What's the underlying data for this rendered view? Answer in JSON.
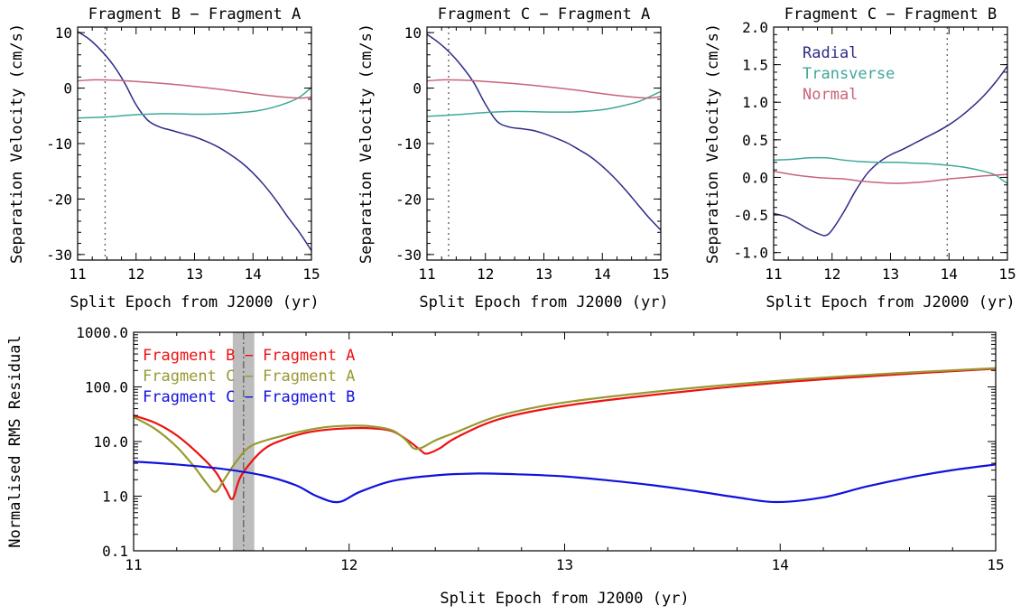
{
  "chart_data": [
    {
      "type": "line",
      "title": "Fragment B − Fragment A",
      "xlabel": "Split Epoch from J2000 (yr)",
      "ylabel": "Separation Velocity (cm/s)",
      "xlim": [
        11,
        15
      ],
      "ylim": [
        -31,
        11
      ],
      "xticks": [
        11,
        12,
        13,
        14,
        15
      ],
      "yticks": [
        10,
        0,
        -10,
        -20,
        -30
      ],
      "vline": 11.47,
      "grid": false,
      "series": [
        {
          "color": "#2d2a86",
          "x": [
            11,
            11.2,
            11.4,
            11.6,
            11.8,
            12.0,
            12.2,
            12.4,
            12.6,
            12.8,
            13.0,
            13.2,
            13.4,
            13.6,
            13.8,
            14.0,
            14.2,
            14.4,
            14.6,
            14.8,
            15.0
          ],
          "y": [
            10.2,
            8.8,
            6.8,
            4.3,
            1.0,
            -3.0,
            -5.8,
            -7.0,
            -7.6,
            -8.2,
            -8.8,
            -9.6,
            -10.6,
            -11.9,
            -13.4,
            -15.3,
            -17.6,
            -20.3,
            -23.3,
            -26.1,
            -29.3
          ]
        },
        {
          "color": "#3fa898",
          "x": [
            11,
            11.5,
            12,
            12.5,
            13,
            13.5,
            14,
            14.3,
            14.6,
            14.8,
            15
          ],
          "y": [
            -5.4,
            -5.2,
            -4.8,
            -4.6,
            -4.7,
            -4.6,
            -4.2,
            -3.6,
            -2.6,
            -1.6,
            0.1
          ]
        },
        {
          "color": "#c8647a",
          "x": [
            11,
            11.3,
            11.7,
            12,
            12.5,
            13,
            13.5,
            14,
            14.5,
            14.8,
            15
          ],
          "y": [
            1.3,
            1.5,
            1.4,
            1.2,
            0.8,
            0.3,
            -0.3,
            -1.0,
            -1.6,
            -1.8,
            -1.6
          ]
        }
      ]
    },
    {
      "type": "line",
      "title": "Fragment C − Fragment A",
      "xlabel": "Split Epoch from J2000 (yr)",
      "ylabel": "Separation Velocity (cm/s)",
      "xlim": [
        11,
        15
      ],
      "ylim": [
        -31,
        11
      ],
      "xticks": [
        11,
        12,
        13,
        14,
        15
      ],
      "yticks": [
        10,
        0,
        -10,
        -20,
        -30
      ],
      "vline": 11.37,
      "grid": false,
      "series": [
        {
          "color": "#2d2a86",
          "x": [
            11,
            11.2,
            11.4,
            11.6,
            11.8,
            12.0,
            12.2,
            12.4,
            12.6,
            12.8,
            13.0,
            13.2,
            13.4,
            13.6,
            13.8,
            14.0,
            14.2,
            14.4,
            14.6,
            14.8,
            15.0
          ],
          "y": [
            9.7,
            8.2,
            6.3,
            3.9,
            1.0,
            -2.9,
            -6.0,
            -7.0,
            -7.3,
            -7.6,
            -8.2,
            -9.0,
            -9.9,
            -11.1,
            -12.4,
            -14.1,
            -16.1,
            -18.4,
            -20.9,
            -23.4,
            -25.6
          ]
        },
        {
          "color": "#3fa898",
          "x": [
            11,
            11.5,
            12,
            12.5,
            13,
            13.5,
            14,
            14.3,
            14.6,
            14.8,
            15
          ],
          "y": [
            -5.1,
            -4.8,
            -4.4,
            -4.2,
            -4.3,
            -4.3,
            -3.9,
            -3.3,
            -2.5,
            -1.6,
            -0.6
          ]
        },
        {
          "color": "#c8647a",
          "x": [
            11,
            11.3,
            11.7,
            12,
            12.5,
            13,
            13.5,
            14,
            14.5,
            14.8,
            15
          ],
          "y": [
            1.3,
            1.5,
            1.4,
            1.2,
            0.8,
            0.3,
            -0.3,
            -1.0,
            -1.6,
            -1.8,
            -1.5
          ]
        }
      ]
    },
    {
      "type": "line",
      "title": "Fragment C − Fragment B",
      "xlabel": "Split Epoch from J2000 (yr)",
      "ylabel": "Separation Velocity (cm/s)",
      "xlim": [
        11,
        15
      ],
      "ylim": [
        -1.1,
        2.0
      ],
      "xticks": [
        11,
        12,
        13,
        14,
        15
      ],
      "yticks": [
        2.0,
        1.5,
        1.0,
        0.5,
        0.0,
        -0.5,
        -1.0
      ],
      "vline": 13.97,
      "grid": false,
      "legend": [
        "Radial",
        "Transverse",
        "Normal"
      ],
      "legend_position": "top-left",
      "series": [
        {
          "name": "Radial",
          "color": "#2d2a86",
          "x": [
            11,
            11.2,
            11.4,
            11.6,
            11.8,
            11.9,
            12.0,
            12.2,
            12.4,
            12.6,
            12.8,
            13.0,
            13.2,
            13.4,
            13.6,
            13.8,
            14.0,
            14.2,
            14.4,
            14.6,
            14.8,
            15.0
          ],
          "y": [
            -0.48,
            -0.52,
            -0.6,
            -0.69,
            -0.76,
            -0.77,
            -0.7,
            -0.46,
            -0.18,
            0.05,
            0.2,
            0.3,
            0.37,
            0.45,
            0.53,
            0.61,
            0.7,
            0.81,
            0.94,
            1.09,
            1.27,
            1.48
          ]
        },
        {
          "name": "Transverse",
          "color": "#3fa898",
          "x": [
            11,
            11.3,
            11.6,
            11.9,
            12.2,
            12.5,
            12.8,
            13.1,
            13.4,
            13.7,
            14.0,
            14.3,
            14.6,
            14.8,
            14.9,
            15.0
          ],
          "y": [
            0.23,
            0.24,
            0.26,
            0.26,
            0.23,
            0.21,
            0.2,
            0.2,
            0.19,
            0.18,
            0.16,
            0.13,
            0.08,
            0.03,
            -0.03,
            -0.08
          ]
        },
        {
          "name": "Normal",
          "color": "#c8647a",
          "x": [
            11,
            11.3,
            11.6,
            11.9,
            12.2,
            12.5,
            12.8,
            13.1,
            13.4,
            13.7,
            14.0,
            14.3,
            14.6,
            14.8,
            15.0
          ],
          "y": [
            0.08,
            0.04,
            0.01,
            -0.01,
            -0.02,
            -0.05,
            -0.07,
            -0.08,
            -0.07,
            -0.05,
            -0.02,
            0.0,
            0.02,
            0.03,
            0.04
          ]
        }
      ]
    },
    {
      "type": "line",
      "xlabel": "Split Epoch from J2000 (yr)",
      "ylabel": "Normalised RMS Residual",
      "xlim": [
        11,
        15
      ],
      "ylim": [
        0.1,
        1000
      ],
      "yscale": "log",
      "xticks": [
        11,
        12,
        13,
        14,
        15
      ],
      "yticks": [
        1000,
        100,
        10,
        1,
        0.1
      ],
      "ytick_labels": [
        "1000.0",
        "100.0",
        "10.0",
        "1.0",
        "0.1"
      ],
      "shaded_band": [
        11.46,
        11.56
      ],
      "vline": 11.51,
      "grid": false,
      "legend": [
        "Fragment B − Fragment A",
        "Fragment C − Fragment A",
        "Fragment C − Fragment B"
      ],
      "legend_position": "top-left",
      "series": [
        {
          "name": "Fragment B − Fragment A",
          "color": "#ee1111",
          "x": [
            11,
            11.1,
            11.2,
            11.3,
            11.38,
            11.43,
            11.46,
            11.5,
            11.6,
            11.7,
            11.8,
            11.9,
            12.0,
            12.1,
            12.2,
            12.28,
            12.33,
            12.36,
            12.42,
            12.5,
            12.7,
            13.0,
            13.5,
            14.0,
            14.5,
            15.0
          ],
          "y": [
            30,
            22,
            13,
            6,
            2.8,
            1.3,
            0.9,
            2.4,
            7,
            11,
            14.5,
            16.5,
            17.5,
            17.5,
            15.5,
            10,
            7,
            6,
            7.5,
            12,
            26,
            45,
            78,
            120,
            165,
            215
          ]
        },
        {
          "name": "Fragment C − Fragment A",
          "color": "#999933",
          "x": [
            11,
            11.1,
            11.2,
            11.28,
            11.34,
            11.38,
            11.42,
            11.48,
            11.55,
            11.7,
            11.8,
            11.9,
            12.0,
            12.1,
            12.2,
            12.26,
            12.3,
            12.34,
            12.4,
            12.5,
            12.7,
            13.0,
            13.5,
            14.0,
            14.5,
            15.0
          ],
          "y": [
            28,
            17,
            8,
            3.5,
            1.7,
            1.2,
            2.0,
            4.5,
            8.5,
            13,
            16,
            18.5,
            19.5,
            19,
            16,
            11,
            7.5,
            7.8,
            10.5,
            15,
            30,
            52,
            88,
            130,
            175,
            220
          ]
        },
        {
          "name": "Fragment C − Fragment B",
          "color": "#1111dd",
          "x": [
            11,
            11.2,
            11.4,
            11.6,
            11.75,
            11.85,
            11.95,
            12.05,
            12.2,
            12.4,
            12.6,
            12.8,
            13.0,
            13.2,
            13.4,
            13.6,
            13.8,
            13.98,
            14.2,
            14.4,
            14.6,
            14.8,
            15.0
          ],
          "y": [
            4.3,
            3.8,
            3.2,
            2.4,
            1.6,
            1.0,
            0.78,
            1.2,
            1.9,
            2.4,
            2.6,
            2.5,
            2.3,
            1.95,
            1.6,
            1.25,
            0.95,
            0.78,
            0.95,
            1.5,
            2.2,
            3.0,
            3.8
          ]
        }
      ]
    }
  ]
}
